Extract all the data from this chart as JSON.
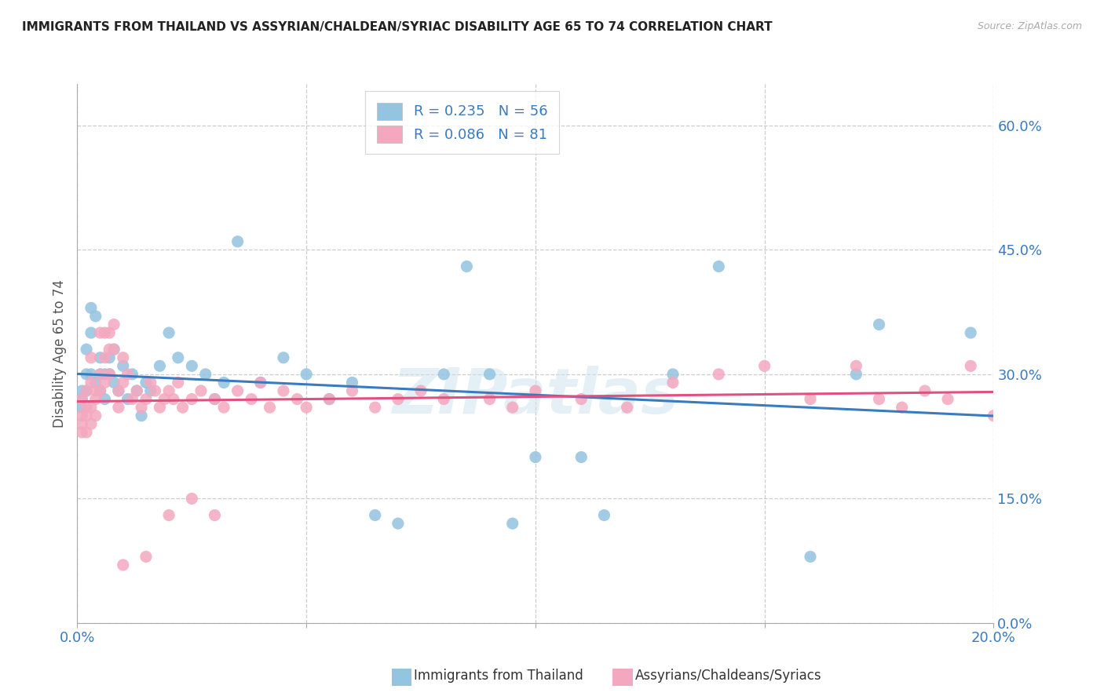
{
  "title": "IMMIGRANTS FROM THAILAND VS ASSYRIAN/CHALDEAN/SYRIAC DISABILITY AGE 65 TO 74 CORRELATION CHART",
  "source": "Source: ZipAtlas.com",
  "ylabel": "Disability Age 65 to 74",
  "legend_label1": "Immigrants from Thailand",
  "legend_label2": "Assyrians/Chaldeans/Syriacs",
  "color_blue": "#93c4e0",
  "color_pink": "#f4a8bf",
  "color_blue_line": "#3a7bbf",
  "color_pink_line": "#e05080",
  "color_blue_text": "#3a7bbf",
  "watermark": "ZIPatlas",
  "blue_R": 0.235,
  "blue_N": 56,
  "pink_R": 0.086,
  "pink_N": 81,
  "xlim": [
    0.0,
    0.2
  ],
  "ylim": [
    0.0,
    0.65
  ],
  "y_ticks": [
    0.0,
    0.15,
    0.3,
    0.45,
    0.6
  ],
  "x_ticks": [
    0.0,
    0.05,
    0.1,
    0.15,
    0.2
  ],
  "blue_x": [
    0.001,
    0.001,
    0.001,
    0.002,
    0.002,
    0.002,
    0.003,
    0.003,
    0.003,
    0.004,
    0.004,
    0.005,
    0.005,
    0.005,
    0.006,
    0.006,
    0.007,
    0.007,
    0.008,
    0.008,
    0.009,
    0.01,
    0.011,
    0.012,
    0.013,
    0.014,
    0.015,
    0.016,
    0.018,
    0.02,
    0.022,
    0.025,
    0.028,
    0.03,
    0.032,
    0.035,
    0.04,
    0.045,
    0.05,
    0.055,
    0.06,
    0.065,
    0.07,
    0.08,
    0.085,
    0.09,
    0.095,
    0.1,
    0.11,
    0.115,
    0.13,
    0.14,
    0.16,
    0.17,
    0.175,
    0.195
  ],
  "blue_y": [
    0.27,
    0.26,
    0.28,
    0.3,
    0.28,
    0.33,
    0.35,
    0.3,
    0.38,
    0.37,
    0.29,
    0.3,
    0.32,
    0.28,
    0.3,
    0.27,
    0.32,
    0.3,
    0.29,
    0.33,
    0.28,
    0.31,
    0.27,
    0.3,
    0.28,
    0.25,
    0.29,
    0.28,
    0.31,
    0.35,
    0.32,
    0.31,
    0.3,
    0.27,
    0.29,
    0.46,
    0.29,
    0.32,
    0.3,
    0.27,
    0.29,
    0.13,
    0.12,
    0.3,
    0.43,
    0.3,
    0.12,
    0.2,
    0.2,
    0.13,
    0.3,
    0.43,
    0.08,
    0.3,
    0.36,
    0.35
  ],
  "pink_x": [
    0.001,
    0.001,
    0.001,
    0.001,
    0.002,
    0.002,
    0.002,
    0.002,
    0.003,
    0.003,
    0.003,
    0.003,
    0.004,
    0.004,
    0.004,
    0.005,
    0.005,
    0.005,
    0.006,
    0.006,
    0.006,
    0.007,
    0.007,
    0.007,
    0.008,
    0.008,
    0.009,
    0.009,
    0.01,
    0.01,
    0.011,
    0.012,
    0.013,
    0.014,
    0.015,
    0.016,
    0.017,
    0.018,
    0.019,
    0.02,
    0.021,
    0.022,
    0.023,
    0.025,
    0.027,
    0.03,
    0.032,
    0.035,
    0.038,
    0.04,
    0.042,
    0.045,
    0.048,
    0.05,
    0.055,
    0.06,
    0.065,
    0.07,
    0.075,
    0.08,
    0.09,
    0.095,
    0.1,
    0.11,
    0.12,
    0.13,
    0.14,
    0.15,
    0.16,
    0.17,
    0.175,
    0.18,
    0.185,
    0.19,
    0.195,
    0.2,
    0.01,
    0.015,
    0.02,
    0.025,
    0.03
  ],
  "pink_y": [
    0.25,
    0.27,
    0.24,
    0.23,
    0.28,
    0.26,
    0.25,
    0.23,
    0.32,
    0.29,
    0.26,
    0.24,
    0.28,
    0.25,
    0.27,
    0.35,
    0.3,
    0.28,
    0.35,
    0.32,
    0.29,
    0.35,
    0.33,
    0.3,
    0.36,
    0.33,
    0.28,
    0.26,
    0.32,
    0.29,
    0.3,
    0.27,
    0.28,
    0.26,
    0.27,
    0.29,
    0.28,
    0.26,
    0.27,
    0.28,
    0.27,
    0.29,
    0.26,
    0.27,
    0.28,
    0.27,
    0.26,
    0.28,
    0.27,
    0.29,
    0.26,
    0.28,
    0.27,
    0.26,
    0.27,
    0.28,
    0.26,
    0.27,
    0.28,
    0.27,
    0.27,
    0.26,
    0.28,
    0.27,
    0.26,
    0.29,
    0.3,
    0.31,
    0.27,
    0.31,
    0.27,
    0.26,
    0.28,
    0.27,
    0.31,
    0.25,
    0.07,
    0.08,
    0.13,
    0.15,
    0.13
  ]
}
